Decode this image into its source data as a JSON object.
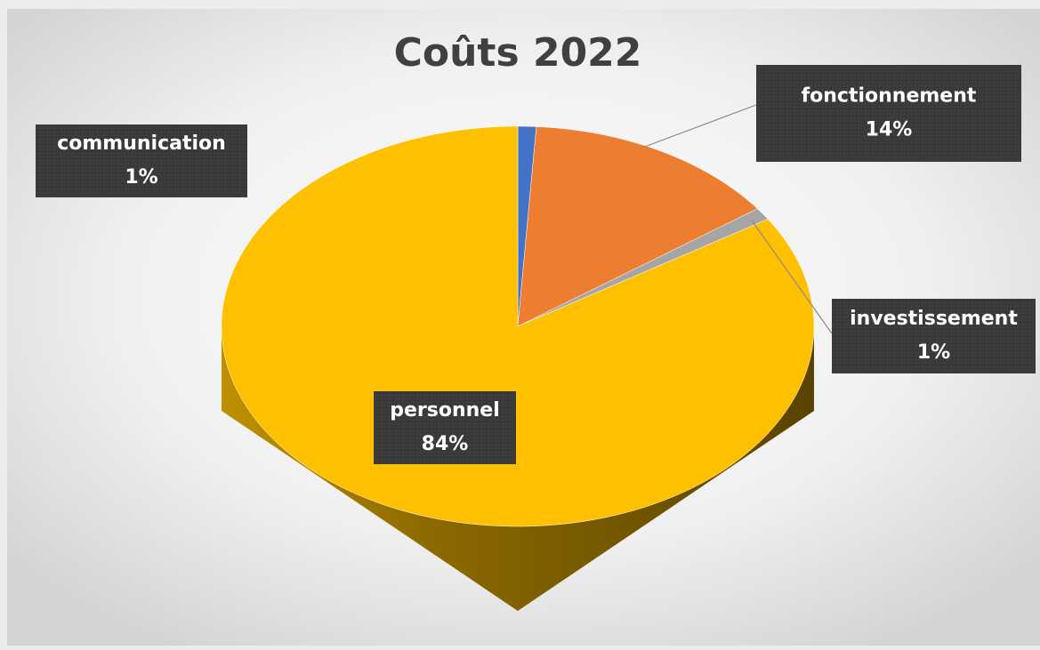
{
  "chart_data": {
    "type": "pie",
    "title": "Coûts 2022",
    "categories": [
      "communication",
      "fonctionnement",
      "investissement",
      "personnel"
    ],
    "values": [
      1,
      14,
      1,
      84
    ],
    "value_labels": [
      "1%",
      "14%",
      "1%",
      "84%"
    ],
    "colors": [
      "#4472c4",
      "#ed7d31",
      "#a5a5a5",
      "#ffc000"
    ]
  }
}
